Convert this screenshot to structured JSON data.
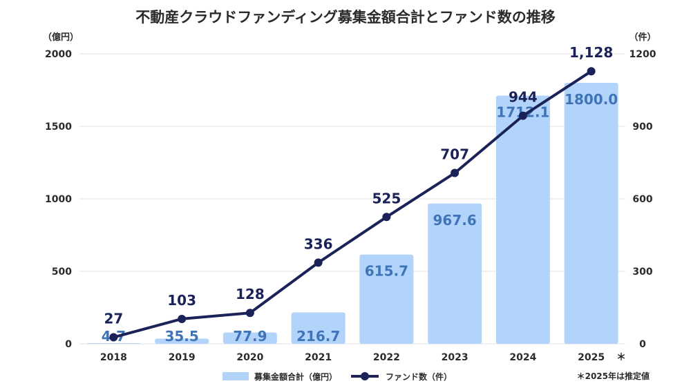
{
  "chart_data": {
    "type": "bar+line",
    "title": "不動産クラウドファンディング募集金額合計とファンド数の推移",
    "categories": [
      "2018",
      "2019",
      "2020",
      "2021",
      "2022",
      "2023",
      "2024",
      "2025"
    ],
    "estimate_marker": "＊",
    "y_left": {
      "unit_label": "（億円）",
      "range": [
        0,
        2000
      ],
      "ticks": [
        0,
        500,
        1000,
        1500,
        2000
      ]
    },
    "y_right": {
      "unit_label": "（件）",
      "range": [
        0,
        1200
      ],
      "ticks": [
        0,
        300,
        600,
        900,
        1200
      ]
    },
    "series": [
      {
        "name": "募集金額合計（億円）",
        "kind": "bar",
        "axis": "left",
        "color": "#b3d4fa",
        "label_color": "#3f74b8",
        "values": [
          4.7,
          35.5,
          77.9,
          216.7,
          615.7,
          967.6,
          1712.1,
          1800.0
        ],
        "labels": [
          "4.7",
          "35.5",
          "77.9",
          "216.7",
          "615.7",
          "967.6",
          "1712.1",
          "1800.0"
        ]
      },
      {
        "name": "ファンド数（件）",
        "kind": "line",
        "axis": "right",
        "color": "#1b2258",
        "values": [
          27,
          103,
          128,
          336,
          525,
          707,
          944,
          1128
        ],
        "labels": [
          "27",
          "103",
          "128",
          "336",
          "525",
          "707",
          "944",
          "1,128"
        ]
      }
    ],
    "note": "＊2025年は推定値"
  }
}
